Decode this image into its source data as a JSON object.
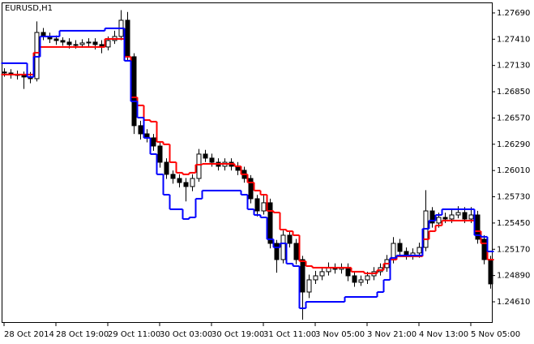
{
  "chart_data": {
    "type": "candlestick",
    "title": "EURUSD,H1",
    "open": [
      1.2706,
      1.2705,
      1.27033,
      1.27024,
      1.27007,
      1.26989,
      1.27482,
      1.27439,
      1.27413,
      1.27396,
      1.27379,
      1.27353,
      1.27353,
      1.2737,
      1.27379,
      1.27353,
      1.27327,
      1.27396,
      1.27439,
      1.27612,
      1.27223,
      1.26488,
      1.26401,
      1.26358,
      1.26271,
      1.26098,
      1.25969,
      1.25925,
      1.25882,
      1.25839,
      1.25925,
      1.26185,
      1.26142,
      1.26098,
      1.26055,
      1.26098,
      1.26055,
      1.26012,
      1.25925,
      1.25709,
      1.25579,
      1.25666,
      1.25233,
      1.2506,
      1.2532,
      1.25233,
      1.2506,
      1.24714,
      1.24844,
      1.24887,
      1.24931,
      1.24974,
      1.24957,
      1.24974,
      1.24887,
      1.24818,
      1.24844,
      1.24887,
      1.24931,
      1.24974,
      1.2506,
      1.25233,
      1.25147,
      1.25104,
      1.2513,
      1.2519,
      1.25579,
      1.2545,
      1.2551,
      1.25493,
      1.25536,
      1.25562,
      1.25493,
      1.25536,
      1.25277,
      1.2506
    ],
    "high": [
      1.271,
      1.2709,
      1.27075,
      1.27065,
      1.2706,
      1.276,
      1.2753,
      1.2748,
      1.2745,
      1.2743,
      1.2742,
      1.274,
      1.2741,
      1.2742,
      1.2742,
      1.274,
      1.2744,
      1.275,
      1.2772,
      1.277,
      1.2726,
      1.2654,
      1.2645,
      1.264,
      1.2631,
      1.2614,
      1.2601,
      1.2597,
      1.2593,
      1.2597,
      1.2624,
      1.2623,
      1.2619,
      1.2614,
      1.2614,
      1.2614,
      1.261,
      1.2605,
      1.2596,
      1.2575,
      1.2575,
      1.2571,
      1.2527,
      1.2537,
      1.2536,
      1.2528,
      1.251,
      1.249,
      1.2494,
      1.2498,
      1.2503,
      1.2502,
      1.2502,
      1.2502,
      1.2493,
      1.2489,
      1.2493,
      1.2498,
      1.2502,
      1.2511,
      1.253,
      1.2528,
      1.2519,
      1.2518,
      1.2524,
      1.258,
      1.2562,
      1.2556,
      1.2556,
      1.256,
      1.2563,
      1.2562,
      1.2562,
      1.2558,
      1.2532,
      1.251
    ],
    "low": [
      1.2701,
      1.2699,
      1.2698,
      1.2688,
      1.2694,
      1.2696,
      1.274,
      1.2737,
      1.2735,
      1.2734,
      1.2731,
      1.2731,
      1.2732,
      1.2733,
      1.273,
      1.2726,
      1.2729,
      1.2736,
      1.274,
      1.2718,
      1.264,
      1.2634,
      1.2631,
      1.2622,
      1.2604,
      1.2592,
      1.2587,
      1.2583,
      1.2568,
      1.2579,
      1.2589,
      1.261,
      1.2605,
      1.2601,
      1.2601,
      1.2601,
      1.2596,
      1.2588,
      1.2566,
      1.2552,
      1.2554,
      1.2518,
      1.2492,
      1.2502,
      1.2519,
      1.2501,
      1.2442,
      1.2465,
      1.248,
      1.2484,
      1.2489,
      1.2491,
      1.2491,
      1.2483,
      1.2477,
      1.2478,
      1.248,
      1.2484,
      1.2489,
      1.2493,
      1.2502,
      1.251,
      1.2506,
      1.2506,
      1.2508,
      1.2515,
      1.254,
      1.254,
      1.2545,
      1.2545,
      1.255,
      1.2545,
      1.2545,
      1.2523,
      1.2501,
      1.2475
    ],
    "close": [
      1.2705,
      1.27033,
      1.27024,
      1.27007,
      1.26989,
      1.27482,
      1.27439,
      1.27413,
      1.27396,
      1.27379,
      1.27353,
      1.27353,
      1.2737,
      1.27379,
      1.27353,
      1.27327,
      1.27396,
      1.27439,
      1.27612,
      1.27223,
      1.26488,
      1.26401,
      1.26358,
      1.26271,
      1.26098,
      1.25969,
      1.25925,
      1.25882,
      1.25839,
      1.25925,
      1.26185,
      1.26142,
      1.26098,
      1.26055,
      1.26098,
      1.26055,
      1.26012,
      1.25925,
      1.25709,
      1.25579,
      1.25666,
      1.25233,
      1.2506,
      1.2532,
      1.25233,
      1.2506,
      1.24714,
      1.24844,
      1.24887,
      1.24931,
      1.24974,
      1.24957,
      1.24974,
      1.24887,
      1.24818,
      1.24844,
      1.24887,
      1.24931,
      1.24974,
      1.2506,
      1.25233,
      1.25147,
      1.25104,
      1.2513,
      1.2519,
      1.25579,
      1.2545,
      1.2551,
      1.25493,
      1.25536,
      1.25562,
      1.25493,
      1.25536,
      1.25277,
      1.2506,
      1.24801
    ],
    "series": [
      {
        "color": "#ff0000",
        "values": [
          1.27033,
          1.27033,
          1.27033,
          1.27033,
          1.27033,
          1.27266,
          1.27327,
          1.27327,
          1.27327,
          1.27327,
          1.27327,
          1.27327,
          1.27327,
          1.27327,
          1.27327,
          1.27327,
          1.27413,
          1.27413,
          1.27413,
          1.27223,
          1.2679,
          1.26704,
          1.26548,
          1.26531,
          1.26315,
          1.26289,
          1.26098,
          1.25986,
          1.25969,
          1.25986,
          1.26072,
          1.26081,
          1.26081,
          1.26081,
          1.26081,
          1.26081,
          1.26055,
          1.25969,
          1.25882,
          1.25796,
          1.25752,
          1.25579,
          1.25562,
          1.2538,
          1.25363,
          1.2532,
          1.25043,
          1.24991,
          1.24974,
          1.24974,
          1.24974,
          1.24974,
          1.24974,
          1.24974,
          1.24931,
          1.24931,
          1.24913,
          1.24913,
          1.24948,
          1.25017,
          1.2506,
          1.25095,
          1.25095,
          1.25095,
          1.25095,
          1.25277,
          1.25363,
          1.25424,
          1.25476,
          1.25476,
          1.25476,
          1.25476,
          1.25476,
          1.25363,
          1.25233,
          1.2506
        ]
      },
      {
        "color": "#0000ff",
        "values": [
          1.27154,
          1.27154,
          1.27154,
          1.27154,
          1.27007,
          1.27223,
          1.27439,
          1.27439,
          1.27439,
          1.275,
          1.275,
          1.275,
          1.275,
          1.275,
          1.275,
          1.275,
          1.27526,
          1.27526,
          1.27526,
          1.2718,
          1.26747,
          1.26574,
          1.26358,
          1.26185,
          1.25969,
          1.25752,
          1.25597,
          1.25597,
          1.25493,
          1.2551,
          1.25709,
          1.25796,
          1.25796,
          1.25796,
          1.25796,
          1.25796,
          1.25796,
          1.25752,
          1.25597,
          1.25536,
          1.2551,
          1.25277,
          1.2519,
          1.25233,
          1.25017,
          1.24991,
          1.24541,
          1.2461,
          1.2461,
          1.2461,
          1.2461,
          1.2461,
          1.2461,
          1.24662,
          1.24662,
          1.24662,
          1.24662,
          1.24662,
          1.24714,
          1.24844,
          1.25078,
          1.25104,
          1.25104,
          1.25104,
          1.25104,
          1.25389,
          1.25476,
          1.25536,
          1.25597,
          1.25597,
          1.25597,
          1.25597,
          1.25597,
          1.2532,
          1.25303,
          1.25147
        ]
      }
    ],
    "ylim": [
      1.24385,
      1.27802
    ],
    "yticks": [
      {
        "value": 1.2769,
        "label": "1.27690"
      },
      {
        "value": 1.2741,
        "label": "1.27410"
      },
      {
        "value": 1.2713,
        "label": "1.27130"
      },
      {
        "value": 1.2685,
        "label": "1.26850"
      },
      {
        "value": 1.2657,
        "label": "1.26570"
      },
      {
        "value": 1.2629,
        "label": "1.26290"
      },
      {
        "value": 1.2601,
        "label": "1.26010"
      },
      {
        "value": 1.2573,
        "label": "1.25730"
      },
      {
        "value": 1.2545,
        "label": "1.25450"
      },
      {
        "value": 1.2517,
        "label": "1.25170"
      },
      {
        "value": 1.2489,
        "label": "1.24890"
      },
      {
        "value": 1.2461,
        "label": "1.24610"
      }
    ],
    "xticks": [
      {
        "value": 0,
        "label": "28 Oct 2014"
      },
      {
        "value": 8,
        "label": "28 Oct 19:00"
      },
      {
        "value": 16,
        "label": "29 Oct 11:00"
      },
      {
        "value": 24,
        "label": "30 Oct 03:00"
      },
      {
        "value": 32,
        "label": "30 Oct 19:00"
      },
      {
        "value": 40,
        "label": "31 Oct 11:00"
      },
      {
        "value": 48,
        "label": "3 Nov 05:00"
      },
      {
        "value": 56,
        "label": "3 Nov 21:00"
      },
      {
        "value": 64,
        "label": "4 Nov 13:00"
      },
      {
        "value": 72,
        "label": "5 Nov 05:00"
      }
    ]
  }
}
